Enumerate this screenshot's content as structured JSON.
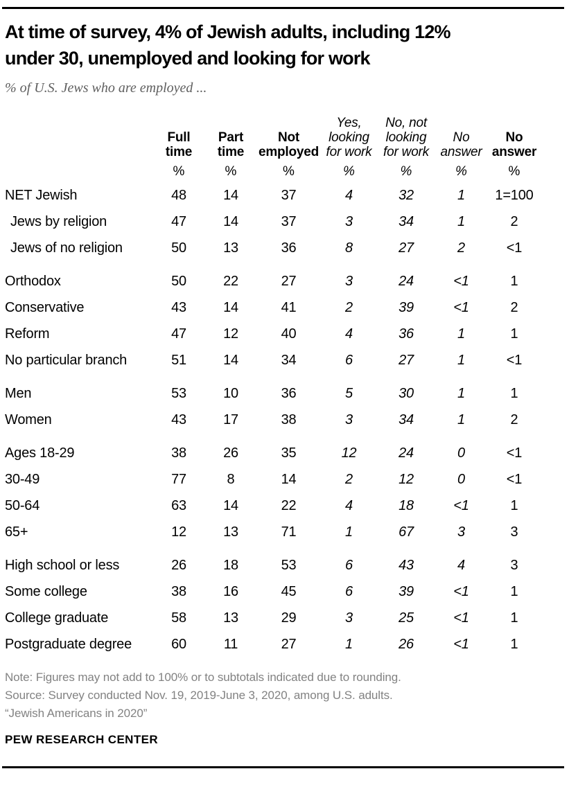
{
  "page": {
    "title_lines": [
      "At time of survey, 4% of Jewish adults, including 12%",
      "under 30, unemployed and looking for work"
    ],
    "subtitle": "% of U.S. Jews who are employed ...",
    "footer": {
      "note": "Note: Figures may not add to 100% or to subtotals indicated due to rounding.",
      "source": "Source: Survey conducted Nov. 19, 2019-June 3, 2020, among U.S. adults.",
      "study": "“Jewish Americans in 2020”",
      "brand": "PEW RESEARCH CENTER"
    }
  },
  "colors": {
    "text": "#000000",
    "subtitle_gray": "#5f5f5f",
    "note_gray": "#828282",
    "rule": "#000000",
    "background": "#ffffff"
  },
  "chart_data": {
    "type": "table",
    "title": "At time of survey, 4% of Jewish adults, including 12% under 30, unemployed and looking for work",
    "subtitle": "% of U.S. Jews who are employed ...",
    "unit": "%",
    "columns": [
      {
        "label": "Full time",
        "emphasis": "bold"
      },
      {
        "label": "Part time",
        "emphasis": "bold"
      },
      {
        "label": "Not employed",
        "emphasis": "bold"
      },
      {
        "label": "Yes, looking for work",
        "emphasis": "italic"
      },
      {
        "label": "No, not looking for work",
        "emphasis": "italic"
      },
      {
        "label": "No answer",
        "emphasis": "italic"
      },
      {
        "label": "No answer",
        "emphasis": "bold"
      }
    ],
    "unit_row": [
      "%",
      "%",
      "%",
      "%",
      "%",
      "%",
      "%"
    ],
    "groups": [
      {
        "rows": [
          {
            "label": "NET Jewish",
            "indent": false,
            "values": [
              "48",
              "14",
              "37",
              "4",
              "32",
              "1",
              "1=100"
            ]
          },
          {
            "label": "Jews by religion",
            "indent": true,
            "values": [
              "47",
              "14",
              "37",
              "3",
              "34",
              "1",
              "2"
            ]
          },
          {
            "label": "Jews of no religion",
            "indent": true,
            "values": [
              "50",
              "13",
              "36",
              "8",
              "27",
              "2",
              "<1"
            ]
          }
        ]
      },
      {
        "rows": [
          {
            "label": "Orthodox",
            "indent": false,
            "values": [
              "50",
              "22",
              "27",
              "3",
              "24",
              "<1",
              "1"
            ]
          },
          {
            "label": "Conservative",
            "indent": false,
            "values": [
              "43",
              "14",
              "41",
              "2",
              "39",
              "<1",
              "2"
            ]
          },
          {
            "label": "Reform",
            "indent": false,
            "values": [
              "47",
              "12",
              "40",
              "4",
              "36",
              "1",
              "1"
            ]
          },
          {
            "label": "No particular branch",
            "indent": false,
            "values": [
              "51",
              "14",
              "34",
              "6",
              "27",
              "1",
              "<1"
            ]
          }
        ]
      },
      {
        "rows": [
          {
            "label": "Men",
            "indent": false,
            "values": [
              "53",
              "10",
              "36",
              "5",
              "30",
              "1",
              "1"
            ]
          },
          {
            "label": "Women",
            "indent": false,
            "values": [
              "43",
              "17",
              "38",
              "3",
              "34",
              "1",
              "2"
            ]
          }
        ]
      },
      {
        "rows": [
          {
            "label": "Ages 18-29",
            "indent": false,
            "values": [
              "38",
              "26",
              "35",
              "12",
              "24",
              "0",
              "<1"
            ]
          },
          {
            "label": "30-49",
            "indent": false,
            "values": [
              "77",
              "8",
              "14",
              "2",
              "12",
              "0",
              "<1"
            ]
          },
          {
            "label": "50-64",
            "indent": false,
            "values": [
              "63",
              "14",
              "22",
              "4",
              "18",
              "<1",
              "1"
            ]
          },
          {
            "label": "65+",
            "indent": false,
            "values": [
              "12",
              "13",
              "71",
              "1",
              "67",
              "3",
              "3"
            ]
          }
        ]
      },
      {
        "rows": [
          {
            "label": "High school or less",
            "indent": false,
            "values": [
              "26",
              "18",
              "53",
              "6",
              "43",
              "4",
              "3"
            ]
          },
          {
            "label": "Some college",
            "indent": false,
            "values": [
              "38",
              "16",
              "45",
              "6",
              "39",
              "<1",
              "1"
            ]
          },
          {
            "label": "College graduate",
            "indent": false,
            "values": [
              "58",
              "13",
              "29",
              "3",
              "25",
              "<1",
              "1"
            ]
          },
          {
            "label": "Postgraduate degree",
            "indent": false,
            "values": [
              "60",
              "11",
              "27",
              "1",
              "26",
              "<1",
              "1"
            ]
          }
        ]
      }
    ]
  }
}
